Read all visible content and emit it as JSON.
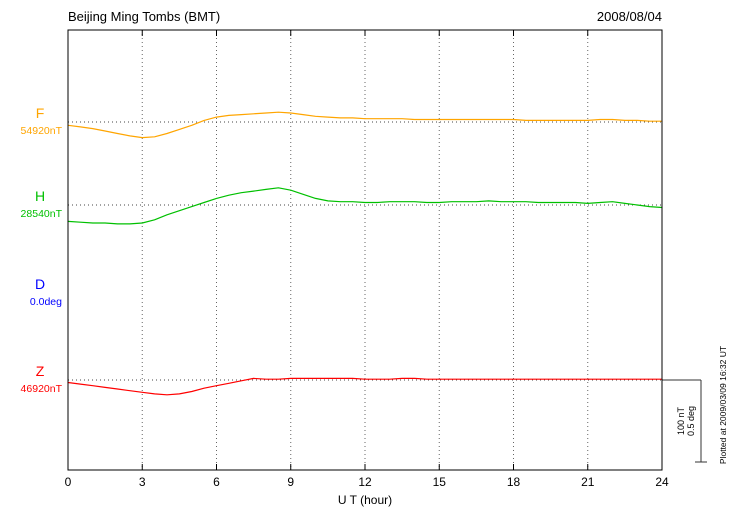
{
  "header": {
    "title": "Beijing Ming Tombs (BMT)",
    "date": "2008/08/04"
  },
  "chart_data": {
    "type": "line",
    "title": "Beijing Ming Tombs (BMT)",
    "date": "2008/08/04",
    "xlabel": "U T (hour)",
    "x_range": [
      0,
      24
    ],
    "x_ticks": [
      0,
      3,
      6,
      9,
      12,
      15,
      18,
      21,
      24
    ],
    "x_step_hours": 0.5,
    "grid": "vertical-dotted-at-3h, dotted-baselines-per-trace",
    "legend_position": "left-margin-labels",
    "scale_bar": {
      "nt_label": "100 nT",
      "deg_label": "0.5 deg",
      "nt_value": 100,
      "deg_value": 0.5
    },
    "plotted_at": "Plotted at 2009/03/09 16:32 UT",
    "series": [
      {
        "name": "F",
        "baseline_label": "54920nT",
        "baseline_value": 54920,
        "unit": "nT",
        "color": "#FFA500",
        "offsets_nT": [
          -4,
          -6,
          -8,
          -11,
          -14,
          -17,
          -19,
          -18,
          -14,
          -9,
          -4,
          2,
          6,
          8,
          9,
          10,
          11,
          12,
          11,
          9,
          7,
          6,
          5,
          5,
          4,
          4,
          4,
          4,
          3,
          3,
          3,
          3,
          3,
          3,
          3,
          3,
          3,
          2,
          2,
          2,
          2,
          2,
          2,
          3,
          3,
          2,
          2,
          1,
          1
        ]
      },
      {
        "name": "H",
        "baseline_label": "28540nT",
        "baseline_value": 28540,
        "unit": "nT",
        "color": "#00C000",
        "offsets_nT": [
          -20,
          -21,
          -22,
          -22,
          -23,
          -23,
          -22,
          -18,
          -12,
          -7,
          -2,
          3,
          8,
          12,
          15,
          17,
          19,
          21,
          18,
          13,
          8,
          5,
          4,
          4,
          3,
          3,
          4,
          4,
          4,
          3,
          3,
          4,
          4,
          4,
          5,
          4,
          4,
          4,
          3,
          3,
          3,
          3,
          2,
          3,
          4,
          2,
          0,
          -2,
          -3
        ]
      },
      {
        "name": "D",
        "baseline_label": "0.0deg",
        "baseline_value": 0.0,
        "unit": "deg",
        "color": "#0000FF",
        "offsets_nT": []
      },
      {
        "name": "Z",
        "baseline_label": "46920nT",
        "baseline_value": 46920,
        "unit": "nT",
        "color": "#FF0000",
        "offsets_nT": [
          -3,
          -5,
          -7,
          -9,
          -11,
          -13,
          -15,
          -17,
          -18,
          -17,
          -14,
          -10,
          -7,
          -4,
          -1,
          2,
          1,
          1,
          2,
          2,
          2,
          2,
          2,
          2,
          1,
          1,
          1,
          2,
          2,
          1,
          1,
          1,
          1,
          1,
          1,
          1,
          1,
          1,
          1,
          1,
          1,
          1,
          1,
          1,
          1,
          1,
          1,
          1,
          1
        ]
      }
    ]
  }
}
